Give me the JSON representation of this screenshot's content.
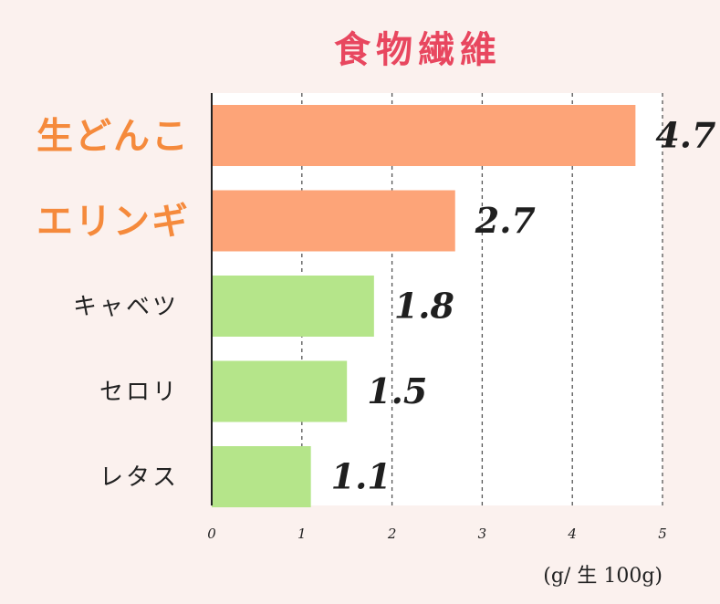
{
  "chart_data": {
    "type": "bar",
    "orientation": "horizontal",
    "title": "食物繊維",
    "categories": [
      "生どんこ",
      "エリンギ",
      "キャベツ",
      "セロリ",
      "レタス"
    ],
    "values": [
      4.7,
      2.7,
      1.8,
      1.5,
      1.1
    ],
    "value_labels": [
      "4.7",
      "2.7",
      "1.8",
      "1.5",
      "1.1"
    ],
    "highlighted": [
      true,
      true,
      false,
      false,
      false
    ],
    "xlim": [
      0,
      5
    ],
    "x_ticks": [
      0,
      1,
      2,
      3,
      4,
      5
    ],
    "x_tick_labels": [
      "0",
      "1",
      "2",
      "3",
      "4",
      "5"
    ],
    "unit": "(g/ 生 100g)",
    "grid": "vertical-dashed",
    "colors": {
      "title": "#e8475f",
      "highlight_bar": "#fda478",
      "normal_bar": "#b5e58a",
      "highlight_label": "#f58a3c",
      "normal_label": "#222222",
      "plot_background": "#ffffff",
      "page_background": "#fbf1ee",
      "value_text": "#1f1f1f"
    }
  }
}
